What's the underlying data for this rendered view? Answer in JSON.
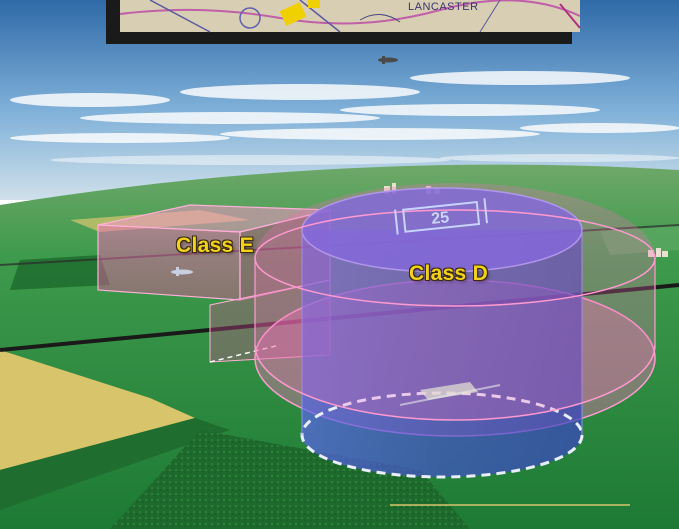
{
  "map_inset": {
    "town_label": "LANCASTER"
  },
  "airspace": {
    "class_e_label": "Class E",
    "class_d_label": "Class D",
    "runway_number": "25"
  },
  "colors": {
    "label_text": "#f2d21a",
    "class_d_fill": "#4a55d8",
    "class_e_fill": "#e85aa8",
    "ground": "#2f9a45",
    "sky": "#7fb0d8"
  }
}
